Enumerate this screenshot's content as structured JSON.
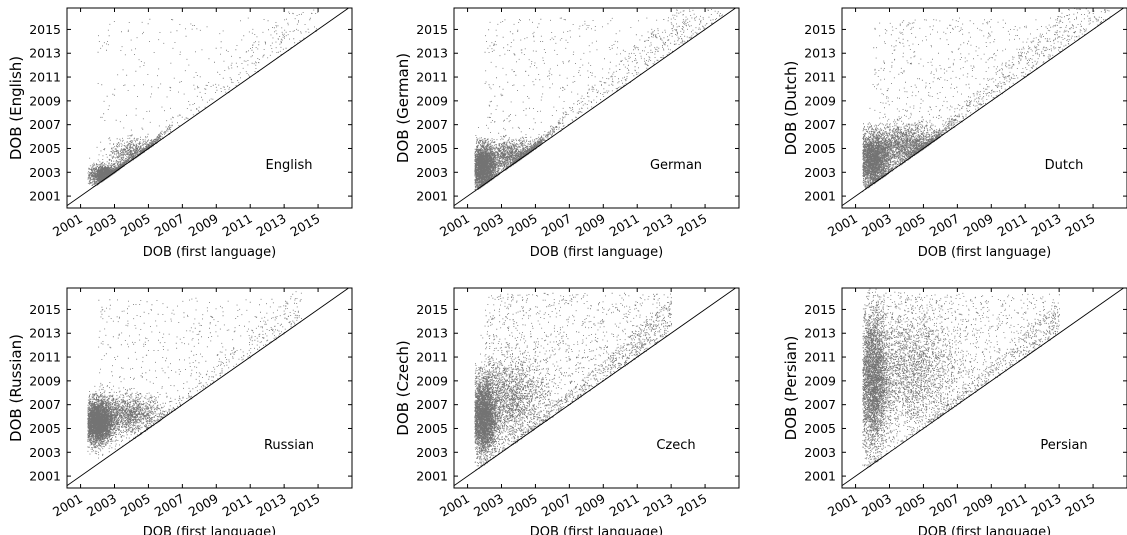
{
  "chart_data": [
    {
      "type": "scatter",
      "xlabel": "DOB (first language)",
      "ylabel": "DOB (English)",
      "annotation": "English",
      "xlim": [
        2000.2,
        2017.0
      ],
      "ylim": [
        2000.0,
        2016.8
      ],
      "xticks": [
        "2001",
        "2003",
        "2005",
        "2007",
        "2009",
        "2011",
        "2013",
        "2015"
      ],
      "yticks": [
        "2001",
        "2003",
        "2005",
        "2007",
        "2009",
        "2011",
        "2013",
        "2015"
      ],
      "reference_line": "y = x",
      "density": "light",
      "clusters": [
        {
          "x": 2002.5,
          "y": 2002.8,
          "sx": 0.5,
          "sy": 0.4,
          "n": 2200
        },
        {
          "x": 2004.3,
          "y": 2004.6,
          "sx": 0.8,
          "sy": 0.6,
          "n": 900
        }
      ],
      "sparse": {
        "x": [
          2002,
          2015
        ],
        "y": [
          2002,
          2016
        ],
        "n": 450
      }
    },
    {
      "type": "scatter",
      "xlabel": "DOB (first language)",
      "ylabel": "DOB (German)",
      "annotation": "German",
      "xlim": [
        2000.2,
        2017.0
      ],
      "ylim": [
        2000.0,
        2016.8
      ],
      "xticks": [
        "2001",
        "2003",
        "2005",
        "2007",
        "2009",
        "2011",
        "2013",
        "2015"
      ],
      "yticks": [
        "2001",
        "2003",
        "2005",
        "2007",
        "2009",
        "2011",
        "2013",
        "2015"
      ],
      "reference_line": "y = x",
      "density": "medium",
      "clusters": [
        {
          "x": 2001.9,
          "y": 2003.4,
          "sx": 0.35,
          "sy": 0.9,
          "n": 3200
        },
        {
          "x": 2003.6,
          "y": 2004.3,
          "sx": 1.0,
          "sy": 0.7,
          "n": 1800
        }
      ],
      "sparse": {
        "x": [
          2002,
          2016
        ],
        "y": [
          2002,
          2016
        ],
        "n": 900
      }
    },
    {
      "type": "scatter",
      "xlabel": "DOB (first language)",
      "ylabel": "DOB (Dutch)",
      "annotation": "Dutch",
      "xlim": [
        2000.2,
        2017.0
      ],
      "ylim": [
        2000.0,
        2016.8
      ],
      "xticks": [
        "2001",
        "2003",
        "2005",
        "2007",
        "2009",
        "2011",
        "2013",
        "2015"
      ],
      "yticks": [
        "2001",
        "2003",
        "2005",
        "2007",
        "2009",
        "2011",
        "2013",
        "2015"
      ],
      "reference_line": "y = x",
      "density": "medium",
      "clusters": [
        {
          "x": 2002.0,
          "y": 2004.0,
          "sx": 0.5,
          "sy": 1.1,
          "n": 3200
        },
        {
          "x": 2004.0,
          "y": 2005.2,
          "sx": 1.1,
          "sy": 0.9,
          "n": 2200
        }
      ],
      "sparse": {
        "x": [
          2002,
          2016
        ],
        "y": [
          2002,
          2016
        ],
        "n": 1200
      }
    },
    {
      "type": "scatter",
      "xlabel": "DOB (first language)",
      "ylabel": "DOB (Russian)",
      "annotation": "Russian",
      "xlim": [
        2000.2,
        2017.0
      ],
      "ylim": [
        2000.0,
        2016.8
      ],
      "xticks": [
        "2001",
        "2003",
        "2005",
        "2007",
        "2009",
        "2011",
        "2013",
        "2015"
      ],
      "yticks": [
        "2001",
        "2003",
        "2005",
        "2007",
        "2009",
        "2011",
        "2013",
        "2015"
      ],
      "reference_line": "y = x",
      "density": "heavy",
      "clusters": [
        {
          "x": 2002.0,
          "y": 2005.6,
          "sx": 0.45,
          "sy": 0.9,
          "n": 4200
        },
        {
          "x": 2003.8,
          "y": 2006.2,
          "sx": 1.0,
          "sy": 0.8,
          "n": 1500
        }
      ],
      "sparse": {
        "x": [
          2002,
          2014
        ],
        "y": [
          2004,
          2016
        ],
        "n": 700
      }
    },
    {
      "type": "scatter",
      "xlabel": "DOB (first language)",
      "ylabel": "DOB (Czech)",
      "annotation": "Czech",
      "xlim": [
        2000.2,
        2017.0
      ],
      "ylim": [
        2000.0,
        2016.8
      ],
      "xticks": [
        "2001",
        "2003",
        "2005",
        "2007",
        "2009",
        "2011",
        "2013",
        "2015"
      ],
      "yticks": [
        "2001",
        "2003",
        "2005",
        "2007",
        "2009",
        "2011",
        "2013",
        "2015"
      ],
      "reference_line": "y = x",
      "density": "heavy",
      "clusters": [
        {
          "x": 2001.9,
          "y": 2006.0,
          "sx": 0.4,
          "sy": 1.6,
          "n": 3800
        },
        {
          "x": 2003.5,
          "y": 2007.5,
          "sx": 1.1,
          "sy": 1.8,
          "n": 2000
        }
      ],
      "sparse": {
        "x": [
          2002,
          2013
        ],
        "y": [
          2003,
          2016.4
        ],
        "n": 1700
      }
    },
    {
      "type": "scatter",
      "xlabel": "DOB (first language)",
      "ylabel": "DOB (Persian)",
      "annotation": "Persian",
      "xlim": [
        2000.2,
        2017.0
      ],
      "ylim": [
        2000.0,
        2016.8
      ],
      "xticks": [
        "2001",
        "2003",
        "2005",
        "2007",
        "2009",
        "2011",
        "2013",
        "2015"
      ],
      "yticks": [
        "2001",
        "2003",
        "2005",
        "2007",
        "2009",
        "2011",
        "2013",
        "2015"
      ],
      "reference_line": "y = x",
      "density": "heavy",
      "clusters": [
        {
          "x": 2002.0,
          "y": 2009.0,
          "sx": 0.45,
          "sy": 3.0,
          "n": 3800
        },
        {
          "x": 2004.2,
          "y": 2010.0,
          "sx": 1.4,
          "sy": 2.5,
          "n": 2200
        }
      ],
      "sparse": {
        "x": [
          2002,
          2013
        ],
        "y": [
          2004,
          2016.4
        ],
        "n": 1500
      }
    }
  ]
}
